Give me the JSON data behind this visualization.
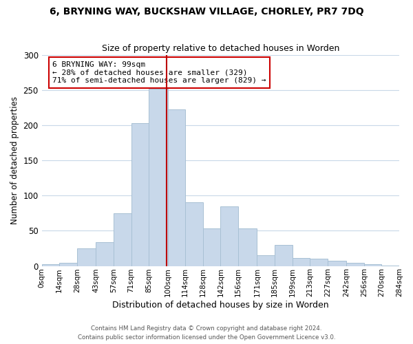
{
  "title": "6, BRYNING WAY, BUCKSHAW VILLAGE, CHORLEY, PR7 7DQ",
  "subtitle": "Size of property relative to detached houses in Worden",
  "xlabel": "Distribution of detached houses by size in Worden",
  "ylabel": "Number of detached properties",
  "bar_color": "#c8d8ea",
  "bar_edge_color": "#a8c0d4",
  "background_color": "#ffffff",
  "grid_color": "#c8d8e8",
  "vline_x": 99,
  "vline_color": "#bb0000",
  "annotation_title": "6 BRYNING WAY: 99sqm",
  "annotation_line1": "← 28% of detached houses are smaller (329)",
  "annotation_line2": "71% of semi-detached houses are larger (829) →",
  "annotation_box_color": "#ffffff",
  "annotation_box_edge": "#cc0000",
  "bin_edges": [
    0,
    14,
    28,
    43,
    57,
    71,
    85,
    100,
    114,
    128,
    142,
    156,
    171,
    185,
    199,
    213,
    227,
    242,
    256,
    270,
    284
  ],
  "bar_heights": [
    2,
    4,
    25,
    34,
    75,
    203,
    252,
    222,
    90,
    53,
    85,
    53,
    15,
    30,
    11,
    10,
    7,
    4,
    2,
    1
  ],
  "footer_line1": "Contains HM Land Registry data © Crown copyright and database right 2024.",
  "footer_line2": "Contains public sector information licensed under the Open Government Licence v3.0.",
  "ylim": [
    0,
    300
  ],
  "yticks": [
    0,
    50,
    100,
    150,
    200,
    250,
    300
  ]
}
